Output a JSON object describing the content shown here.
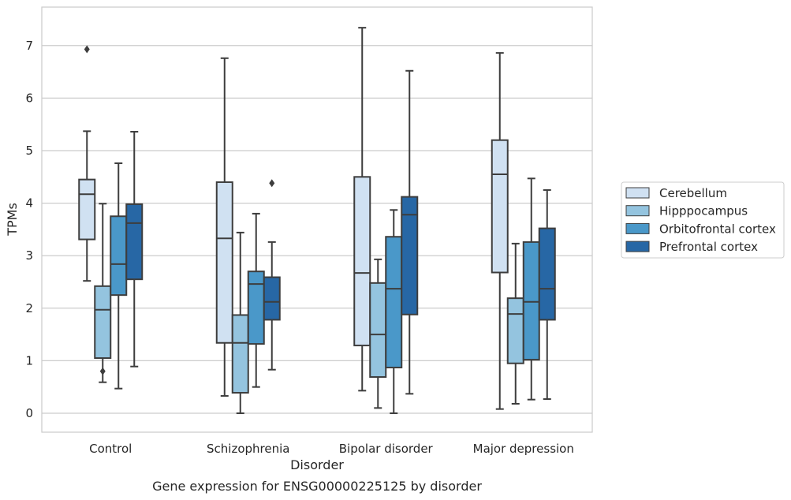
{
  "chart_data": {
    "type": "box",
    "title": "",
    "caption": "Gene expression for ENSG00000225125 by disorder",
    "xlabel": "Disorder",
    "ylabel": "TPMs",
    "ylim": [
      -0.35,
      7.7
    ],
    "yticks": [
      "0",
      "1",
      "2",
      "3",
      "4",
      "5",
      "6",
      "7"
    ],
    "grid": "horizontal",
    "legend_position": "right",
    "categories": [
      "Control",
      "Schizophrenia",
      "Bipolar disorder",
      "Major depression"
    ],
    "series": [
      {
        "name": "Cerebellum",
        "color": "#d0e1f2",
        "boxes": [
          {
            "whislo": 2.52,
            "q1": 3.31,
            "med": 4.17,
            "q3": 4.45,
            "whishi": 5.37,
            "fliers": [
              6.93
            ]
          },
          {
            "whislo": 0.33,
            "q1": 1.34,
            "med": 3.33,
            "q3": 4.4,
            "whishi": 6.76,
            "fliers": []
          },
          {
            "whislo": 0.43,
            "q1": 1.29,
            "med": 2.67,
            "q3": 4.5,
            "whishi": 7.34,
            "fliers": []
          },
          {
            "whislo": 0.08,
            "q1": 2.68,
            "med": 4.55,
            "q3": 5.2,
            "whishi": 6.86,
            "fliers": []
          }
        ]
      },
      {
        "name": "Hipppocampus",
        "color": "#94c4df",
        "boxes": [
          {
            "whislo": 0.59,
            "q1": 1.05,
            "med": 1.97,
            "q3": 2.42,
            "whishi": 3.99,
            "fliers": [
              0.8
            ]
          },
          {
            "whislo": 0.0,
            "q1": 0.39,
            "med": 1.34,
            "q3": 1.87,
            "whishi": 3.44,
            "fliers": []
          },
          {
            "whislo": 0.1,
            "q1": 0.69,
            "med": 1.5,
            "q3": 2.48,
            "whishi": 2.93,
            "fliers": []
          },
          {
            "whislo": 0.18,
            "q1": 0.95,
            "med": 1.89,
            "q3": 2.19,
            "whishi": 3.23,
            "fliers": []
          }
        ]
      },
      {
        "name": "Orbitofrontal cortex",
        "color": "#4a98c9",
        "boxes": [
          {
            "whislo": 0.47,
            "q1": 2.25,
            "med": 2.84,
            "q3": 3.75,
            "whishi": 4.76,
            "fliers": []
          },
          {
            "whislo": 0.5,
            "q1": 1.32,
            "med": 2.46,
            "q3": 2.7,
            "whishi": 3.8,
            "fliers": []
          },
          {
            "whislo": 0.0,
            "q1": 0.87,
            "med": 2.37,
            "q3": 3.36,
            "whishi": 3.87,
            "fliers": []
          },
          {
            "whislo": 0.26,
            "q1": 1.02,
            "med": 2.12,
            "q3": 3.26,
            "whishi": 4.47,
            "fliers": []
          }
        ]
      },
      {
        "name": "Prefrontal cortex",
        "color": "#2767a5",
        "boxes": [
          {
            "whislo": 0.89,
            "q1": 2.55,
            "med": 3.62,
            "q3": 3.98,
            "whishi": 5.36,
            "fliers": []
          },
          {
            "whislo": 0.83,
            "q1": 1.78,
            "med": 2.12,
            "q3": 2.59,
            "whishi": 3.26,
            "fliers": [
              4.38
            ]
          },
          {
            "whislo": 0.37,
            "q1": 1.88,
            "med": 3.78,
            "q3": 4.12,
            "whishi": 6.52,
            "fliers": []
          },
          {
            "whislo": 0.27,
            "q1": 1.78,
            "med": 2.37,
            "q3": 3.52,
            "whishi": 4.25,
            "fliers": []
          }
        ]
      }
    ]
  }
}
